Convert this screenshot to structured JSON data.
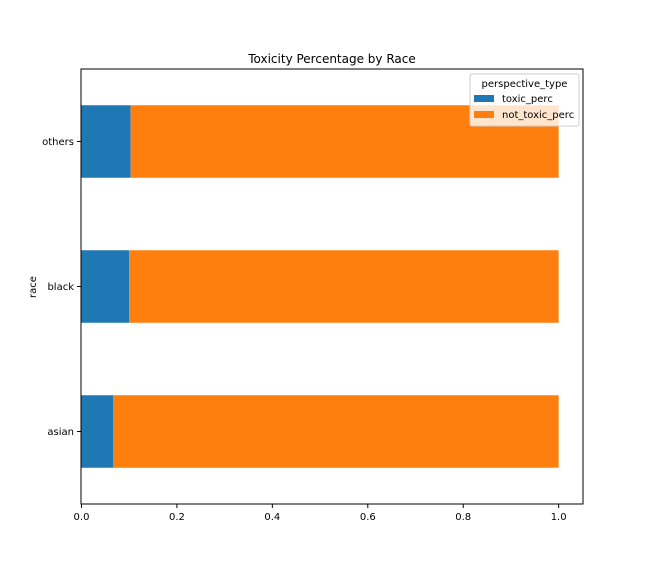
{
  "chart_data": {
    "type": "bar",
    "orientation": "horizontal",
    "stacked": true,
    "title": "Toxicity Percentage by Race",
    "ylabel": "race",
    "xlabel": "",
    "categories": [
      "asian",
      "black",
      "others"
    ],
    "series": [
      {
        "name": "toxic_perc",
        "values": [
          0.066,
          0.1,
          0.103
        ],
        "color": "#1f77b4"
      },
      {
        "name": "not_toxic_perc",
        "values": [
          0.934,
          0.9,
          0.897
        ],
        "color": "#ff7f0e"
      }
    ],
    "xlim": [
      0,
      1.05
    ],
    "xticks": [
      0.0,
      0.2,
      0.4,
      0.6,
      0.8,
      1.0
    ],
    "xtick_labels": [
      "0.0",
      "0.2",
      "0.4",
      "0.6",
      "0.8",
      "1.0"
    ],
    "legend": {
      "title": "perspective_type",
      "position": "top-right"
    },
    "grid": false
  }
}
